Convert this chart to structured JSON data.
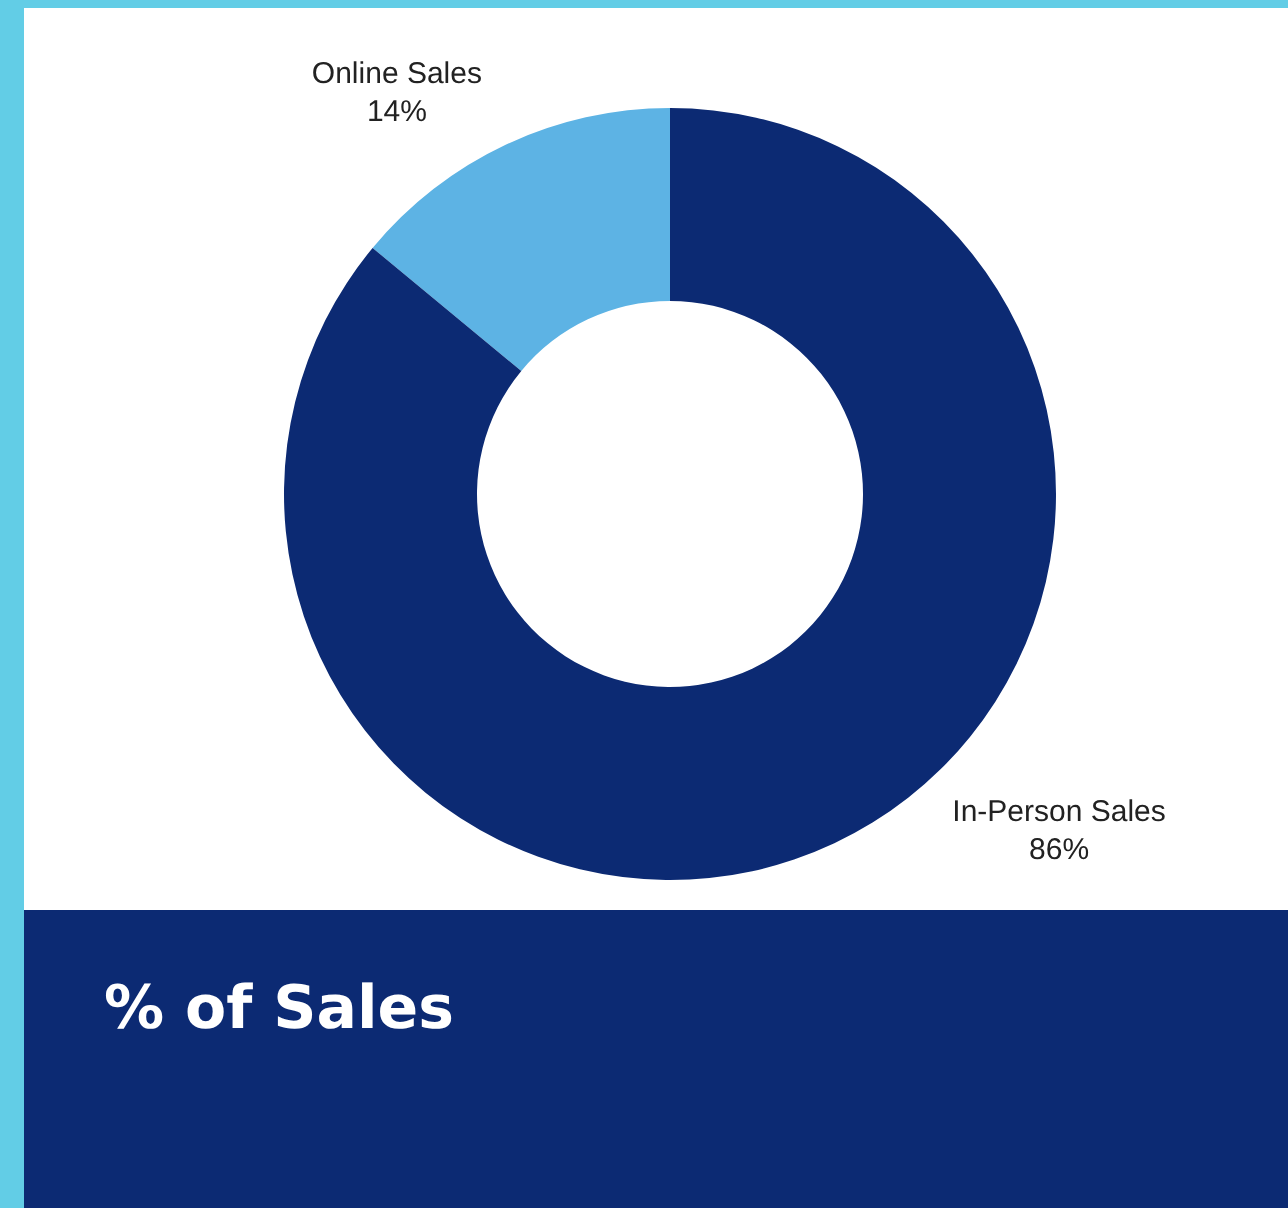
{
  "chart_data": {
    "type": "donut",
    "title": "% of Sales",
    "categories": [
      "Online Sales",
      "In-Person Sales"
    ],
    "values": [
      14,
      86
    ],
    "value_labels": [
      "14%",
      "86%"
    ],
    "colors": [
      "#5db3e4",
      "#0c2a73"
    ]
  }
}
